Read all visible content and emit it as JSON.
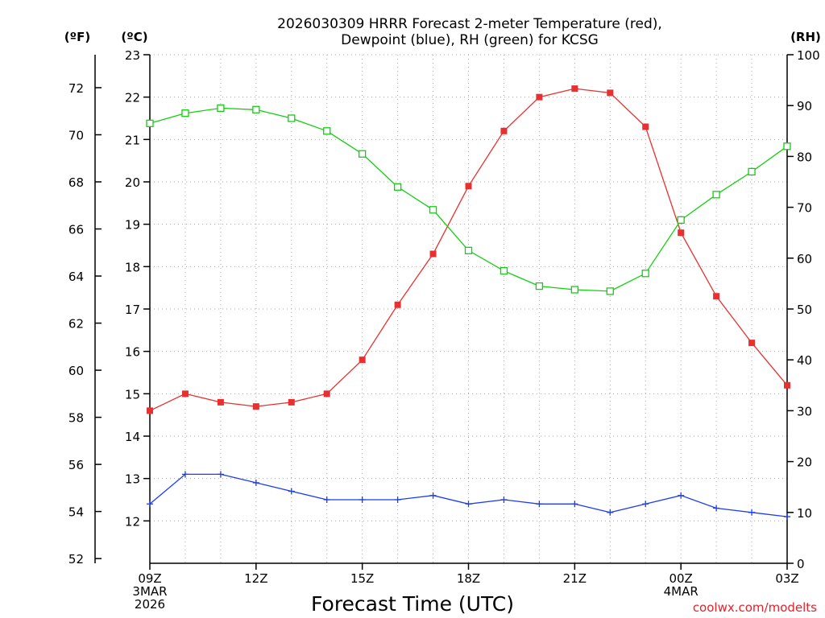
{
  "chart_data": {
    "type": "line",
    "title_line1": "2026030309 HRRR Forecast 2-meter Temperature (red),",
    "title_line2": "Dewpoint (blue), RH (green) for KCSG",
    "left_outer_unit": "(ºF)",
    "left_inner_unit": "(ºC)",
    "right_unit": "(RH)",
    "xlabel": "Forecast Time (UTC)",
    "credit": "coolwx.com/modelts",
    "colors": {
      "temperature": "#e83030",
      "dewpoint": "#1e3cf0",
      "rh": "#10d010"
    },
    "celsius_axis": {
      "min": 11,
      "max": 23,
      "ticks": [
        12,
        13,
        14,
        15,
        16,
        17,
        18,
        19,
        20,
        21,
        22,
        23
      ]
    },
    "fahrenheit_axis": {
      "ticks": [
        52,
        54,
        56,
        58,
        60,
        62,
        64,
        66,
        68,
        70,
        72
      ]
    },
    "rh_axis": {
      "min": 0,
      "max": 100,
      "ticks": [
        0,
        10,
        20,
        30,
        40,
        50,
        60,
        70,
        80,
        90,
        100
      ]
    },
    "x_axis": {
      "min": 0,
      "max": 18,
      "grid_every": 1
    },
    "x_ticks": [
      {
        "x": 0,
        "lines": [
          "09Z",
          "3MAR",
          "2026"
        ]
      },
      {
        "x": 3,
        "lines": [
          "12Z"
        ]
      },
      {
        "x": 6,
        "lines": [
          "15Z"
        ]
      },
      {
        "x": 9,
        "lines": [
          "18Z"
        ]
      },
      {
        "x": 12,
        "lines": [
          "21Z"
        ]
      },
      {
        "x": 15,
        "lines": [
          "00Z",
          "4MAR"
        ]
      },
      {
        "x": 18,
        "lines": [
          "03Z"
        ]
      }
    ],
    "series": [
      {
        "name": "Temperature",
        "unit": "C",
        "marker": "filled-square",
        "x": [
          0,
          1,
          2,
          3,
          4,
          5,
          6,
          7,
          8,
          9,
          10,
          11,
          12,
          13,
          14,
          15,
          16,
          17,
          18
        ],
        "values": [
          14.6,
          15.0,
          14.8,
          14.7,
          14.8,
          15.0,
          15.8,
          17.1,
          18.3,
          19.9,
          21.2,
          22.0,
          22.2,
          22.1,
          21.3,
          18.8,
          17.3,
          16.2,
          15.2
        ]
      },
      {
        "name": "Dewpoint",
        "unit": "C",
        "marker": "plus",
        "x": [
          0,
          1,
          2,
          3,
          4,
          5,
          6,
          7,
          8,
          9,
          10,
          11,
          12,
          13,
          14,
          15,
          16,
          17,
          18
        ],
        "values": [
          12.4,
          13.1,
          13.1,
          12.9,
          12.7,
          12.5,
          12.5,
          12.5,
          12.6,
          12.4,
          12.5,
          12.4,
          12.4,
          12.2,
          12.4,
          12.6,
          12.3,
          12.2,
          12.1
        ]
      },
      {
        "name": "RH",
        "unit": "%",
        "marker": "open-square",
        "x": [
          0,
          1,
          2,
          3,
          4,
          5,
          6,
          7,
          8,
          9,
          10,
          11,
          12,
          13,
          14,
          15,
          16,
          17,
          18
        ],
        "values": [
          86.5,
          88.5,
          89.5,
          89.2,
          87.5,
          85.0,
          80.5,
          74.0,
          69.5,
          61.5,
          57.5,
          54.5,
          53.8,
          53.5,
          57.0,
          67.5,
          72.5,
          77.0,
          82.0
        ]
      }
    ]
  }
}
